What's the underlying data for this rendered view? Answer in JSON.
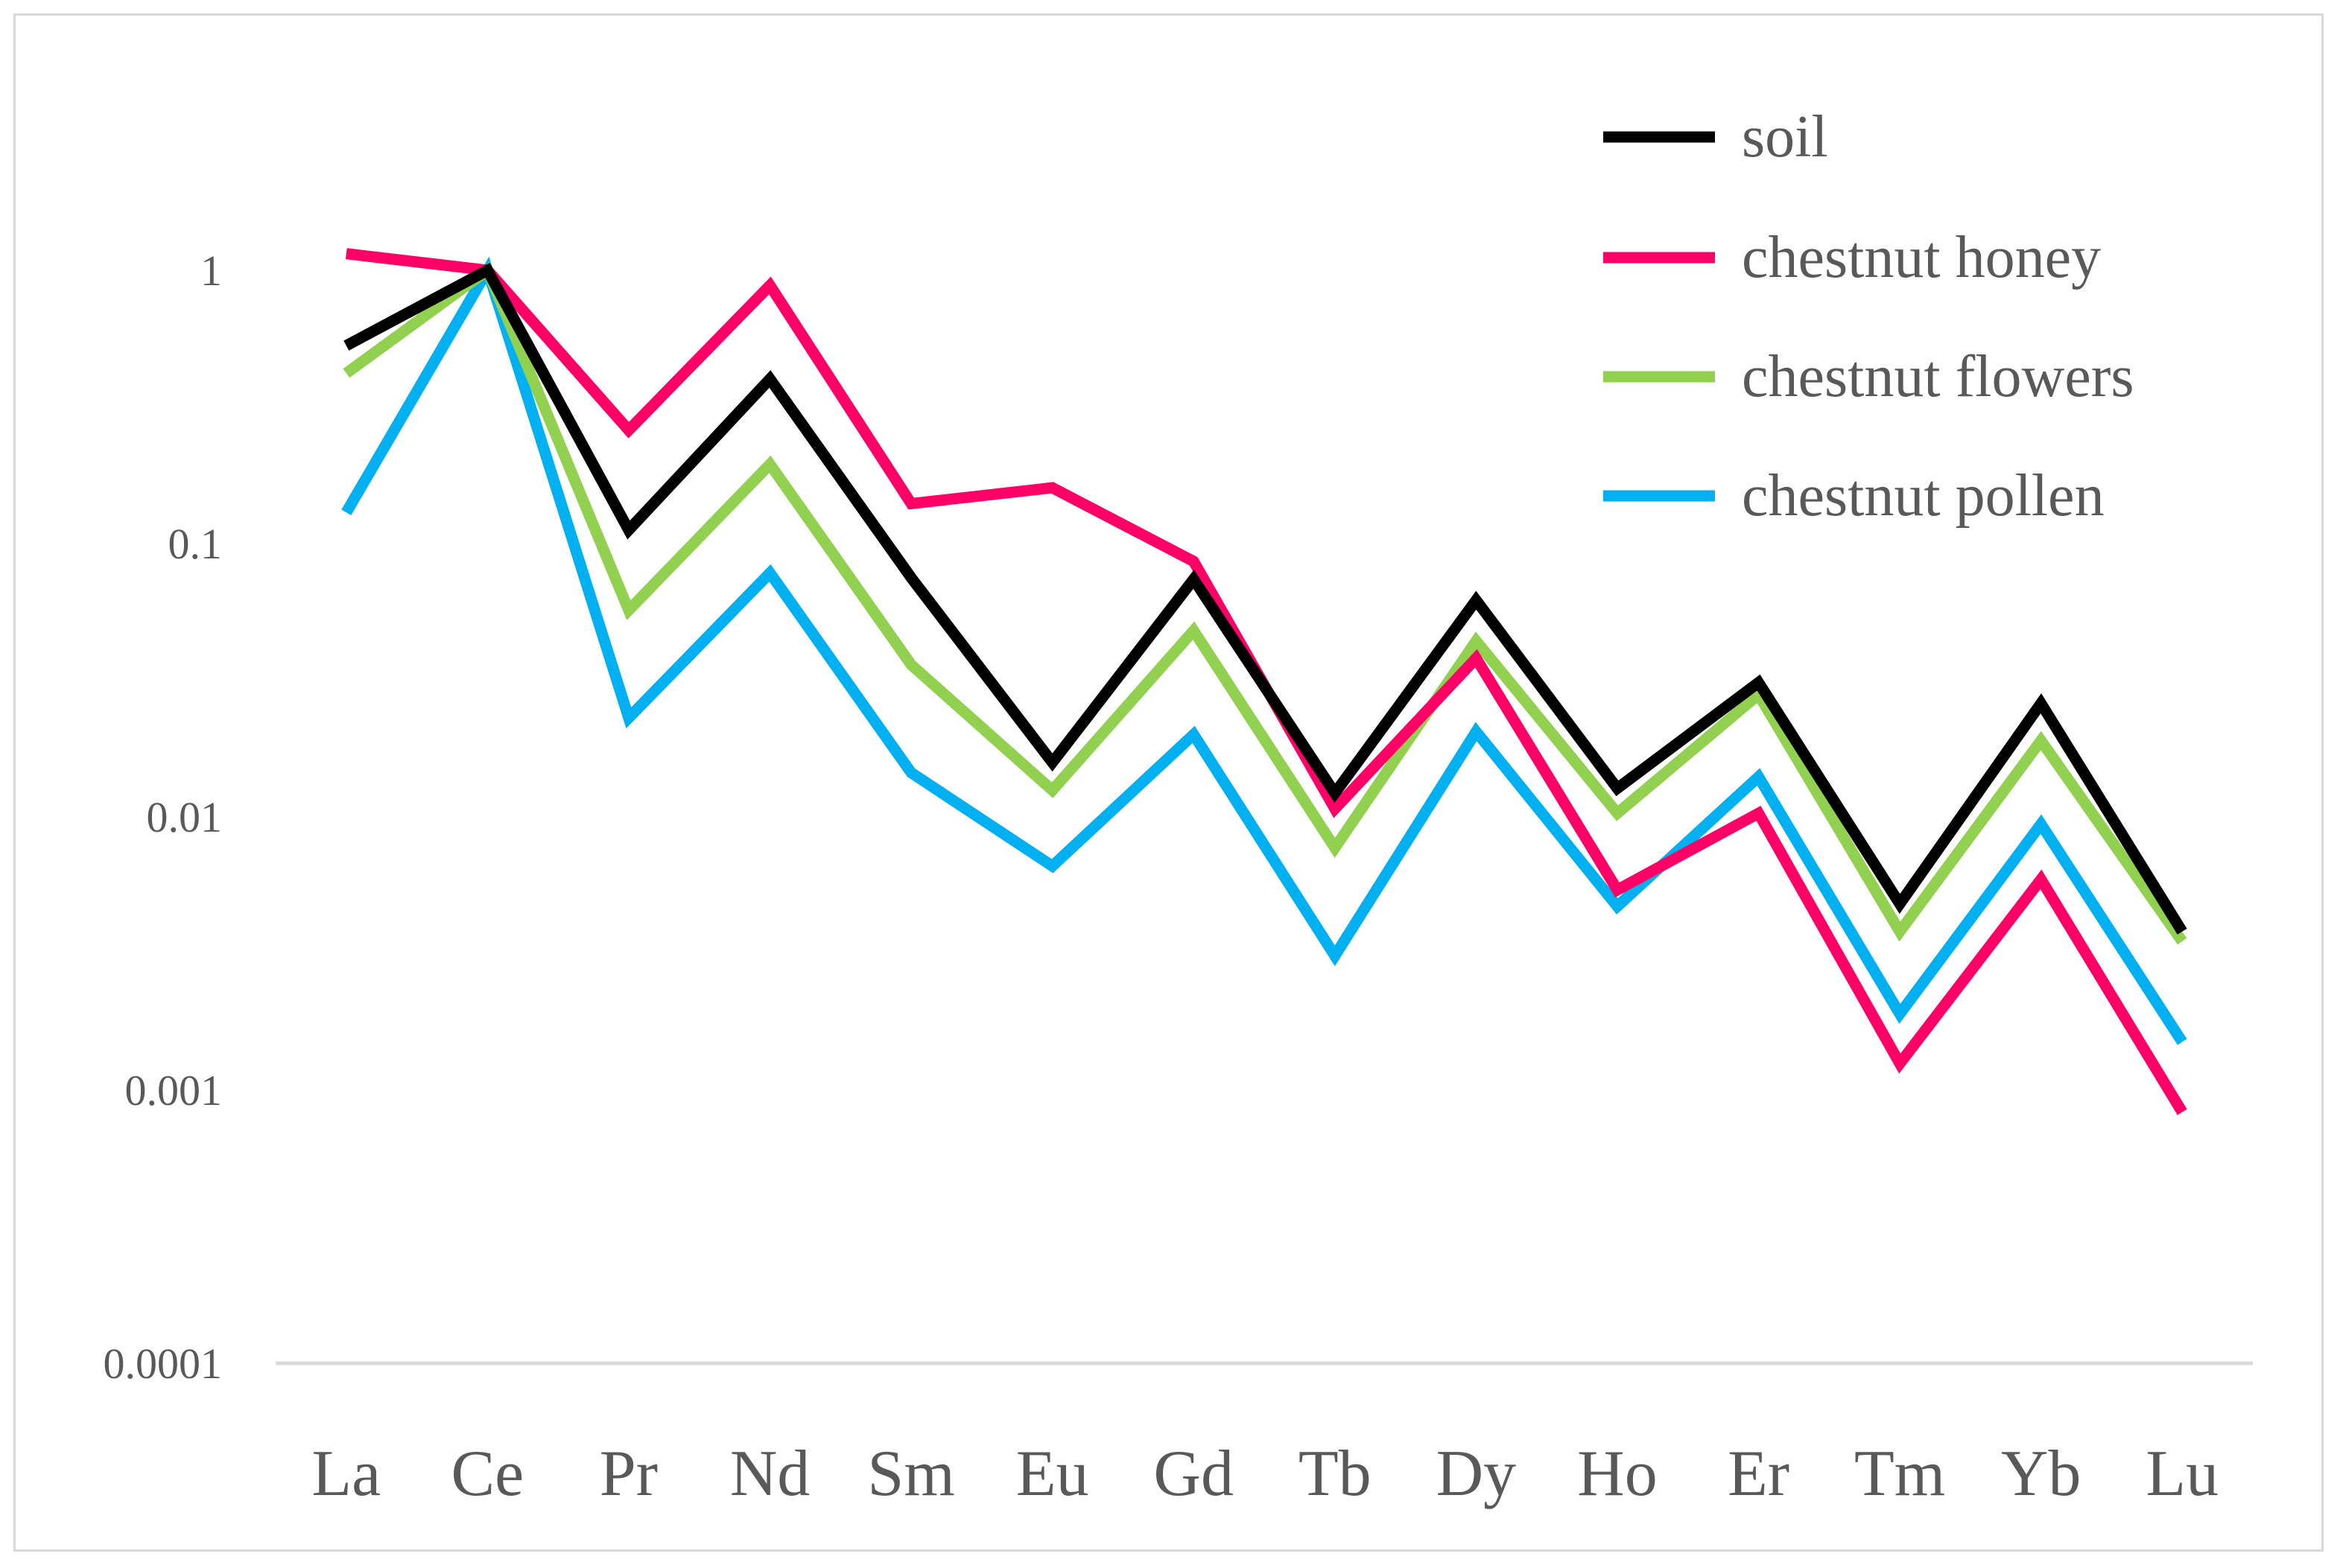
{
  "chart_data": {
    "type": "line",
    "title": "",
    "xlabel": "",
    "ylabel": "",
    "yscale": "log",
    "ylim": [
      0.0001,
      10
    ],
    "y_ticks": [
      "0.0001",
      "0.001",
      "0.01",
      "0.1",
      "1"
    ],
    "y_tick_values": [
      0.0001,
      0.001,
      0.01,
      0.1,
      1
    ],
    "categories": [
      "La",
      "Ce",
      "Pr",
      "Nd",
      "Sm",
      "Eu",
      "Gd",
      "Tb",
      "Dy",
      "Ho",
      "Er",
      "Tm",
      "Yb",
      "Lu"
    ],
    "legend_position": "top-right",
    "grid": false,
    "series": [
      {
        "name": "soil",
        "color": "#000000",
        "values": [
          0.53,
          1.0,
          0.112,
          0.4,
          0.075,
          0.0158,
          0.074,
          0.0122,
          0.062,
          0.0127,
          0.031,
          0.0048,
          0.026,
          0.0038
        ]
      },
      {
        "name": "chestnut honey",
        "color": "#ff0066",
        "values": [
          1.15,
          1.0,
          0.26,
          0.88,
          0.14,
          0.16,
          0.086,
          0.0107,
          0.038,
          0.0054,
          0.0103,
          0.00125,
          0.0059,
          0.00083
        ]
      },
      {
        "name": "chestnut flowers",
        "color": "#92d050",
        "values": [
          0.42,
          1.0,
          0.057,
          0.195,
          0.036,
          0.0125,
          0.048,
          0.0077,
          0.044,
          0.0103,
          0.028,
          0.0038,
          0.019,
          0.0035
        ]
      },
      {
        "name": "chestnut pollen",
        "color": "#00b0f0",
        "values": [
          0.13,
          1.0,
          0.023,
          0.078,
          0.0145,
          0.0066,
          0.02,
          0.0031,
          0.0205,
          0.0047,
          0.014,
          0.0019,
          0.0094,
          0.0015
        ]
      }
    ]
  }
}
